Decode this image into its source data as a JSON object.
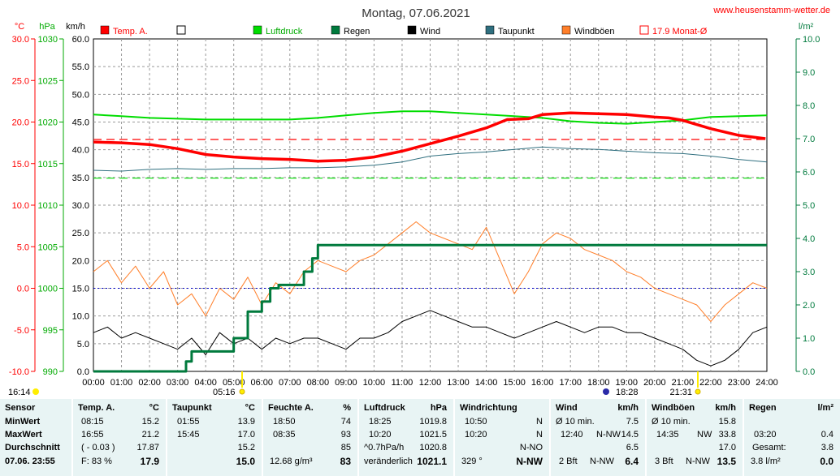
{
  "title": "Montag, 07.06.2021",
  "website": "www.heusenstamm-wetter.de",
  "colors": {
    "temp": "#ff0000",
    "pressure": "#00dd00",
    "rain": "#007a3d",
    "wind": "#000000",
    "dewpoint": "#2f6f7f",
    "gust": "#ff7f2a",
    "month_avg": "#ff0000"
  },
  "legend": [
    {
      "label": "Temp. A.",
      "color": "#ff0000",
      "style": "filled"
    },
    {
      "label": "",
      "color": "#ffffff",
      "style": "empty"
    },
    {
      "label": "Luftdruck",
      "color": "#00dd00",
      "style": "filled"
    },
    {
      "label": "Regen",
      "color": "#007a3d",
      "style": "filled"
    },
    {
      "label": "Wind",
      "color": "#000000",
      "style": "filled"
    },
    {
      "label": "Taupunkt",
      "color": "#2f6f7f",
      "style": "filled"
    },
    {
      "label": "Windböen",
      "color": "#ff7f2a",
      "style": "filled"
    },
    {
      "label": "17.9 Monat-Ø",
      "color": "#ff0000",
      "style": "outline"
    }
  ],
  "chart_data": {
    "type": "line",
    "title": "Montag, 07.06.2021",
    "x_ticks": [
      "00:00",
      "01:00",
      "02:00",
      "03:00",
      "04:00",
      "05:00",
      "06:00",
      "07:00",
      "08:00",
      "09:00",
      "10:00",
      "11:00",
      "12:00",
      "13:00",
      "14:00",
      "15:00",
      "16:00",
      "17:00",
      "18:00",
      "19:00",
      "20:00",
      "21:00",
      "22:00",
      "23:00",
      "24:00"
    ],
    "axes": {
      "temp": {
        "unit": "°C",
        "range": [
          -10,
          30
        ],
        "ticks": [
          "30.0",
          "25.0",
          "20.0",
          "15.0",
          "10.0",
          "5.0",
          "0.0",
          "-5.0",
          "-10.0"
        ]
      },
      "pressure": {
        "unit": "hPa",
        "range": [
          990,
          1030
        ],
        "ticks": [
          "1030",
          "1025",
          "1020",
          "1015",
          "1010",
          "1005",
          "1000",
          "995",
          "990"
        ]
      },
      "wind": {
        "unit": "km/h",
        "range": [
          0,
          60
        ],
        "ticks": [
          "60.0",
          "55.0",
          "50.0",
          "45.0",
          "40.0",
          "35.0",
          "30.0",
          "25.0",
          "20.0",
          "15.0",
          "10.0",
          "5.0",
          "0.0"
        ]
      },
      "rain": {
        "unit": "l/m²",
        "range": [
          0,
          10
        ],
        "ticks": [
          "10.0",
          "9.0",
          "8.0",
          "7.0",
          "6.0",
          "5.0",
          "4.0",
          "3.0",
          "2.0",
          "1.0",
          "0.0"
        ]
      }
    },
    "grid": true,
    "reference_lines": [
      {
        "name": "Monat-Ø Temp",
        "axis": "temp",
        "value": 17.9
      },
      {
        "name": "Luftdruck 1013",
        "axis": "pressure",
        "value": 1013.25
      },
      {
        "name": "Temp 0",
        "axis": "temp",
        "value": 0
      }
    ],
    "series": [
      {
        "name": "Temp. A.",
        "axis": "temp",
        "x": [
          0,
          1,
          2,
          3,
          4,
          5,
          6,
          7,
          8,
          9,
          10,
          11,
          12,
          13,
          14,
          14.75,
          15.5,
          16,
          17,
          18,
          19,
          20,
          20.5,
          21,
          22,
          23,
          23.95
        ],
        "y": [
          17.6,
          17.5,
          17.3,
          16.8,
          16.1,
          15.8,
          15.6,
          15.5,
          15.3,
          15.4,
          15.8,
          16.5,
          17.4,
          18.3,
          19.3,
          20.3,
          20.4,
          20.9,
          21.1,
          21.0,
          20.9,
          20.6,
          20.5,
          20.2,
          19.2,
          18.4,
          18.0
        ]
      },
      {
        "name": "Luftdruck",
        "axis": "pressure",
        "x": [
          0,
          1,
          2,
          3,
          4,
          5,
          6,
          7,
          8,
          9,
          10,
          11,
          12,
          13,
          14,
          15,
          16,
          17,
          18,
          19,
          20,
          21,
          22,
          23,
          24
        ],
        "y": [
          1020.9,
          1020.7,
          1020.5,
          1020.4,
          1020.3,
          1020.3,
          1020.3,
          1020.3,
          1020.5,
          1020.8,
          1021.1,
          1021.3,
          1021.3,
          1021.1,
          1020.9,
          1020.7,
          1020.5,
          1020.1,
          1019.9,
          1019.8,
          1020.0,
          1020.2,
          1020.6,
          1020.7,
          1020.8
        ]
      },
      {
        "name": "Taupunkt",
        "axis": "temp",
        "x": [
          0,
          1,
          2,
          3,
          4,
          5,
          6,
          7,
          8,
          9,
          10,
          11,
          12,
          13,
          14,
          15,
          16,
          17,
          18,
          19,
          20,
          21,
          22,
          23,
          24
        ],
        "y": [
          14.2,
          14.1,
          14.3,
          14.4,
          14.3,
          14.4,
          14.4,
          14.5,
          14.5,
          14.6,
          14.8,
          15.2,
          15.9,
          16.2,
          16.4,
          16.7,
          17.0,
          16.8,
          16.7,
          16.5,
          16.3,
          16.2,
          15.9,
          15.5,
          15.2
        ]
      },
      {
        "name": "Regen",
        "axis": "rain",
        "x": [
          0,
          2.8,
          3.3,
          3.5,
          4.0,
          4.7,
          5.0,
          5.5,
          6.0,
          6.3,
          6.6,
          7.3,
          7.5,
          7.8,
          8.0,
          8.5,
          24
        ],
        "y": [
          0,
          0,
          0.3,
          0.6,
          0.6,
          0.6,
          1.0,
          1.8,
          2.1,
          2.5,
          2.6,
          2.6,
          3.0,
          3.4,
          3.8,
          3.8,
          3.8
        ]
      },
      {
        "name": "Wind",
        "axis": "wind",
        "x": [
          0,
          0.5,
          1,
          1.5,
          2,
          2.5,
          3,
          3.5,
          4,
          4.5,
          5,
          5.5,
          6,
          6.5,
          7,
          7.5,
          8,
          8.5,
          9,
          9.5,
          10,
          10.5,
          11,
          11.5,
          12,
          12.5,
          13,
          13.5,
          14,
          14.5,
          15,
          15.5,
          16,
          16.5,
          17,
          17.5,
          18,
          18.5,
          19,
          19.5,
          20,
          20.5,
          21,
          21.5,
          22,
          22.5,
          23,
          23.5,
          24
        ],
        "y": [
          7,
          8,
          6,
          7,
          6,
          5,
          4,
          6,
          3,
          7,
          5,
          6,
          4,
          6,
          5,
          6,
          6,
          5,
          4,
          6,
          6,
          7,
          9,
          10,
          11,
          10,
          9,
          8,
          8,
          7,
          6,
          7,
          8,
          9,
          8,
          7,
          8,
          8,
          7,
          7,
          6,
          5,
          4,
          2,
          1,
          2,
          4,
          7,
          8
        ]
      },
      {
        "name": "Windböen",
        "axis": "wind",
        "x": [
          0,
          0.5,
          1,
          1.5,
          2,
          2.5,
          3,
          3.5,
          4,
          4.5,
          5,
          5.5,
          6,
          6.5,
          7,
          7.5,
          8,
          8.5,
          9,
          9.5,
          10,
          10.5,
          11,
          11.5,
          12,
          12.5,
          13,
          13.5,
          14,
          14.5,
          15,
          15.5,
          16,
          16.5,
          17,
          17.5,
          18,
          18.5,
          19,
          19.5,
          20,
          20.5,
          21,
          21.5,
          22,
          22.5,
          23,
          23.5,
          24
        ],
        "y": [
          18,
          20,
          16,
          19,
          15,
          18,
          12,
          14,
          10,
          15,
          13,
          17,
          12,
          16,
          14,
          18,
          20,
          19,
          18,
          20,
          21,
          23,
          25,
          27,
          25,
          24,
          23,
          22,
          26,
          20,
          14,
          18,
          23,
          25,
          24,
          22,
          21,
          20,
          18,
          17,
          15,
          14,
          13,
          12,
          9,
          12,
          14,
          16,
          15
        ]
      }
    ],
    "markers": [
      {
        "label": "16:14",
        "kind": "moon"
      },
      {
        "label": "05:16",
        "kind": "sunrise"
      },
      {
        "label": "18:28",
        "kind": "moonset"
      },
      {
        "label": "21:31",
        "kind": "sunset"
      }
    ]
  },
  "stats": {
    "sensor": {
      "header": "Sensor",
      "rows": [
        "MinWert",
        "MaxWert",
        "Durchschnitt",
        "07.06. 23:55"
      ]
    },
    "temp": {
      "header": "Temp. A.",
      "unit": "°C",
      "rows": [
        [
          "08:15",
          "15.2"
        ],
        [
          "16:55",
          "21.2"
        ],
        [
          "( - 0.03 )",
          "17.87"
        ],
        [
          "F: 83 %",
          "17.9"
        ]
      ]
    },
    "dew": {
      "header": "Taupunkt",
      "unit": "°C",
      "rows": [
        [
          "01:55",
          "13.9"
        ],
        [
          "15:45",
          "17.0"
        ],
        [
          "",
          "15.2"
        ],
        [
          "",
          "15.0"
        ]
      ]
    },
    "hum": {
      "header": "Feuchte A.",
      "unit": "%",
      "rows": [
        [
          "18:50",
          "74"
        ],
        [
          "08:35",
          "93"
        ],
        [
          "",
          "85"
        ],
        [
          "12.68 g/m³",
          "83"
        ]
      ]
    },
    "press": {
      "header": "Luftdruck",
      "unit": "hPa",
      "rows": [
        [
          "18:25",
          "1019.8"
        ],
        [
          "10:20",
          "1021.5"
        ],
        [
          "^0.7hPa/h",
          "1020.8"
        ],
        [
          "veränderlich",
          "1021.1"
        ]
      ]
    },
    "dir": {
      "header": "Windrichtung",
      "rows": [
        [
          "10:50",
          "N"
        ],
        [
          "10:20",
          "N"
        ],
        [
          "",
          "N-NO"
        ],
        [
          "329 °",
          "N-NW"
        ]
      ]
    },
    "wind": {
      "header": "Wind",
      "unit": "km/h",
      "rows": [
        [
          "Ø 10 min.",
          "",
          "7.5"
        ],
        [
          "12:40",
          "N-NW",
          "14.5"
        ],
        [
          "",
          "",
          "6.5"
        ],
        [
          "2 Bft",
          "N-NW",
          "6.4"
        ]
      ]
    },
    "gust": {
      "header": "Windböen",
      "unit": "km/h",
      "rows": [
        [
          "Ø 10 min.",
          "",
          "15.8"
        ],
        [
          "14:35",
          "NW",
          "33.8"
        ],
        [
          "",
          "",
          "17.0"
        ],
        [
          "3 Bft",
          "N-NW",
          "13.5"
        ]
      ]
    },
    "rain": {
      "header": "Regen",
      "unit": "l/m²",
      "rows": [
        [
          "",
          ""
        ],
        [
          "03:20",
          "0.4"
        ],
        [
          "Gesamt:",
          "3.8"
        ],
        [
          "3.8 l/m²",
          "0.0"
        ]
      ]
    }
  }
}
